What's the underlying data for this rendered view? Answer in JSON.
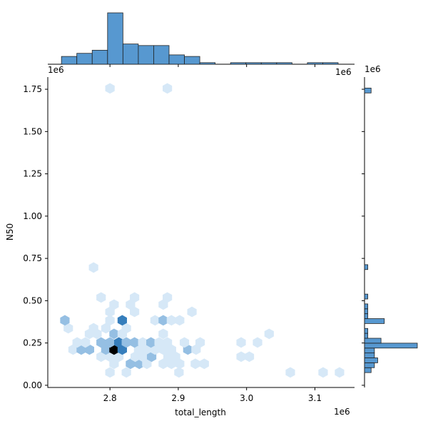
{
  "chart_data": {
    "type": "hexbin-joint",
    "xlabel": "total_length",
    "ylabel": "N50",
    "offset_label": "1e6",
    "xlim": [
      2.709,
      3.158
    ],
    "ylim": [
      -0.013,
      1.822
    ],
    "xticks": [
      2.8,
      2.9,
      {
        "value": 3.0,
        "label": "3.0"
      },
      3.1
    ],
    "yticks": [
      {
        "value": 0,
        "label": "0.00"
      },
      0.25,
      {
        "value": 0.5,
        "label": "0.50"
      },
      0.75,
      {
        "value": 1,
        "label": "1.00"
      },
      1.25,
      {
        "value": 1.5,
        "label": "1.50"
      },
      1.75
    ],
    "color": "#3a86c8",
    "hexes": {
      "x": [
        2.8,
        2.824,
        2.901,
        3.064,
        3.112,
        3.136,
        2.806,
        2.83,
        2.843,
        2.854,
        2.878,
        2.89,
        2.902,
        2.925,
        2.938,
        2.787,
        2.8,
        2.813,
        2.837,
        2.848,
        2.861,
        2.885,
        2.896,
        2.992,
        3.004,
        2.746,
        2.758,
        2.77,
        2.794,
        2.806,
        2.818,
        2.842,
        2.853,
        2.866,
        2.878,
        2.89,
        2.914,
        2.926,
        2.752,
        2.764,
        2.787,
        2.8,
        2.813,
        2.824,
        2.836,
        2.848,
        2.86,
        2.872,
        2.884,
        2.909,
        2.932,
        2.992,
        3.016,
        2.77,
        2.781,
        2.806,
        2.818,
        2.878,
        3.033,
        2.739,
        2.776,
        2.794,
        2.824,
        2.734,
        2.8,
        2.818,
        2.866,
        2.878,
        2.89,
        2.902,
        2.8,
        2.836,
        2.92,
        2.806,
        2.83,
        2.878,
        2.787,
        2.836,
        2.884,
        2.776,
        2.8,
        2.884
      ],
      "y": [
        0.076,
        0.076,
        0.076,
        0.076,
        0.076,
        0.076,
        0.127,
        0.127,
        0.127,
        0.127,
        0.127,
        0.127,
        0.127,
        0.127,
        0.127,
        0.169,
        0.169,
        0.169,
        0.169,
        0.169,
        0.169,
        0.169,
        0.169,
        0.169,
        0.169,
        0.211,
        0.211,
        0.211,
        0.211,
        0.211,
        0.211,
        0.211,
        0.211,
        0.211,
        0.211,
        0.211,
        0.211,
        0.211,
        0.253,
        0.253,
        0.253,
        0.253,
        0.253,
        0.253,
        0.253,
        0.253,
        0.253,
        0.253,
        0.253,
        0.253,
        0.253,
        0.253,
        0.253,
        0.304,
        0.304,
        0.304,
        0.304,
        0.304,
        0.304,
        0.337,
        0.337,
        0.337,
        0.337,
        0.384,
        0.384,
        0.384,
        0.384,
        0.384,
        0.384,
        0.384,
        0.434,
        0.434,
        0.434,
        0.477,
        0.477,
        0.477,
        0.519,
        0.519,
        0.519,
        0.696,
        1.755,
        1.755
      ],
      "counts": [
        1,
        1,
        1,
        1,
        1,
        1,
        1,
        3,
        3,
        1,
        1,
        1,
        1,
        1,
        1,
        1,
        1,
        1,
        1,
        1,
        3,
        1,
        1,
        1,
        1,
        1,
        3,
        3,
        3,
        9,
        6,
        1,
        1,
        1,
        1,
        1,
        3,
        1,
        1,
        1,
        3,
        3,
        6,
        3,
        3,
        1,
        3,
        1,
        1,
        1,
        1,
        1,
        1,
        1,
        1,
        3,
        1,
        1,
        1,
        1,
        1,
        1,
        1,
        3,
        1,
        6,
        1,
        3,
        1,
        1,
        1,
        1,
        1,
        1,
        1,
        1,
        1,
        1,
        1,
        1,
        1,
        1
      ]
    },
    "top_hist": {
      "bins": [
        2.729,
        2.7515,
        2.774,
        2.7965,
        2.819,
        2.8415,
        2.864,
        2.8865,
        2.909,
        2.9315,
        2.954,
        2.9765,
        2.999,
        3.0215,
        3.044,
        3.0665,
        3.089,
        3.1115,
        3.134
      ],
      "counts": [
        5,
        7,
        9,
        33,
        13,
        12,
        12,
        6,
        5,
        1,
        0,
        1,
        1,
        1,
        1,
        0,
        1,
        1
      ]
    },
    "right_hist": {
      "bins": [
        0.075,
        0.104,
        0.133,
        0.162,
        0.191,
        0.22,
        0.249,
        0.278,
        0.307,
        0.336,
        0.365,
        0.394,
        0.423,
        0.452,
        0.481,
        0.51,
        0.539,
        0.568,
        0.597,
        0.626,
        0.655,
        0.684,
        0.713,
        0.742,
        0.771,
        0.8,
        0.829,
        0.858,
        0.887,
        0.916,
        0.945,
        0.974,
        1.003,
        1.032,
        1.061,
        1.09,
        1.119,
        1.148,
        1.177,
        1.206,
        1.235,
        1.264,
        1.293,
        1.322,
        1.351,
        1.38,
        1.409,
        1.438,
        1.467,
        1.496,
        1.525,
        1.554,
        1.583,
        1.612,
        1.641,
        1.67,
        1.699,
        1.728,
        1.757
      ],
      "counts": [
        2,
        3,
        4,
        3,
        3,
        16,
        5,
        1,
        1,
        0,
        6,
        1,
        1,
        1,
        0,
        1,
        0,
        0,
        0,
        0,
        0,
        1,
        0,
        0,
        0,
        0,
        0,
        0,
        0,
        0,
        0,
        0,
        0,
        0,
        0,
        0,
        0,
        0,
        0,
        0,
        0,
        0,
        0,
        0,
        0,
        0,
        0,
        0,
        0,
        0,
        0,
        0,
        0,
        0,
        0,
        0,
        0,
        2
      ]
    }
  }
}
